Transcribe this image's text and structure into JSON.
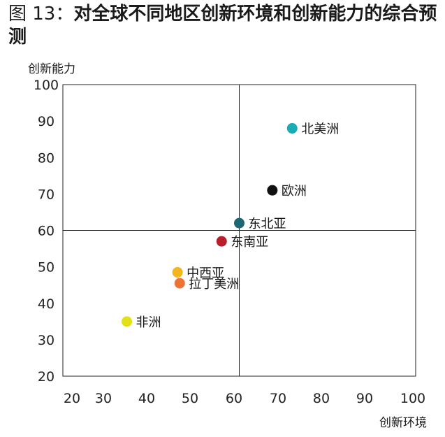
{
  "chart_data": {
    "type": "scatter",
    "title_prefix": "图 13：",
    "title": "对全球不同地区创新环境和创新能力的综合预测",
    "xlabel": "创新环境",
    "ylabel": "创新能力",
    "xlim": [
      20,
      100
    ],
    "ylim": [
      20,
      100
    ],
    "x_ticks": [
      20,
      30,
      40,
      50,
      60,
      80,
      90,
      100
    ],
    "x_ticks_note_all": [
      20,
      30,
      40,
      50,
      60,
      70,
      80,
      90,
      100
    ],
    "y_ticks": [
      20,
      30,
      40,
      50,
      60,
      70,
      80,
      90,
      100
    ],
    "quadrant_lines": {
      "x": 60,
      "y": 60
    },
    "grid": false,
    "points": [
      {
        "label": "北美洲",
        "x": 72,
        "y": 88,
        "color": "#1aacb5"
      },
      {
        "label": "欧洲",
        "x": 67.5,
        "y": 71,
        "color": "#111111"
      },
      {
        "label": "东北亚",
        "x": 60,
        "y": 62,
        "color": "#1b6874"
      },
      {
        "label": "东南亚",
        "x": 56,
        "y": 57,
        "color": "#b5202b"
      },
      {
        "label": "中西亚",
        "x": 46,
        "y": 48.5,
        "color": "#f2b51c"
      },
      {
        "label": "拉丁美洲",
        "x": 46.5,
        "y": 45.5,
        "color": "#ec7235"
      },
      {
        "label": "非洲",
        "x": 34.5,
        "y": 35,
        "color": "#e2e016"
      }
    ]
  }
}
